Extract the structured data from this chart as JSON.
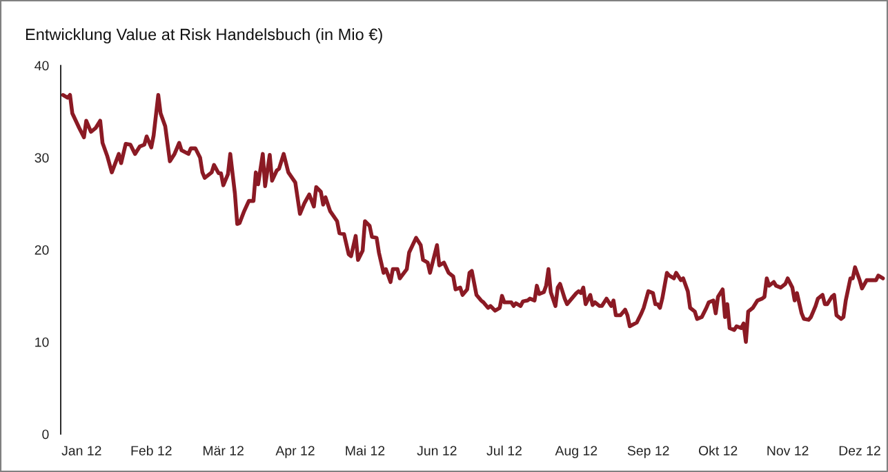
{
  "chart_data": {
    "type": "line",
    "title": "Entwicklung Value at Risk Handelsbuch (in Mio €)",
    "x": [
      "2012-01-02",
      "2012-01-04",
      "2012-01-05",
      "2012-01-06",
      "2012-01-09",
      "2012-01-11",
      "2012-01-12",
      "2012-01-14",
      "2012-01-16",
      "2012-01-18",
      "2012-01-19",
      "2012-01-21",
      "2012-01-23",
      "2012-01-26",
      "2012-01-27",
      "2012-01-29",
      "2012-01-31",
      "2012-02-02",
      "2012-02-04",
      "2012-02-06",
      "2012-02-07",
      "2012-02-09",
      "2012-02-10",
      "2012-02-12",
      "2012-02-13",
      "2012-02-15",
      "2012-02-17",
      "2012-02-19",
      "2012-02-21",
      "2012-02-22",
      "2012-02-25",
      "2012-02-26",
      "2012-02-28",
      "2012-03-01",
      "2012-03-02",
      "2012-03-03",
      "2012-03-06",
      "2012-03-07",
      "2012-03-09",
      "2012-03-10",
      "2012-03-11",
      "2012-03-13",
      "2012-03-14",
      "2012-03-16",
      "2012-03-17",
      "2012-03-18",
      "2012-03-20",
      "2012-03-22",
      "2012-03-24",
      "2012-03-25",
      "2012-03-26",
      "2012-03-28",
      "2012-03-29",
      "2012-03-31",
      "2012-04-01",
      "2012-04-03",
      "2012-04-04",
      "2012-04-06",
      "2012-04-08",
      "2012-04-11",
      "2012-04-13",
      "2012-04-15",
      "2012-04-17",
      "2012-04-19",
      "2012-04-20",
      "2012-04-22",
      "2012-04-23",
      "2012-04-24",
      "2012-04-26",
      "2012-04-29",
      "2012-04-30",
      "2012-05-02",
      "2012-05-04",
      "2012-05-05",
      "2012-05-07",
      "2012-05-08",
      "2012-05-10",
      "2012-05-11",
      "2012-05-13",
      "2012-05-14",
      "2012-05-16",
      "2012-05-17",
      "2012-05-19",
      "2012-05-20",
      "2012-05-22",
      "2012-05-23",
      "2012-05-25",
      "2012-05-26",
      "2012-05-29",
      "2012-05-30",
      "2012-06-02",
      "2012-06-04",
      "2012-06-05",
      "2012-06-07",
      "2012-06-08",
      "2012-06-11",
      "2012-06-12",
      "2012-06-14",
      "2012-06-16",
      "2012-06-18",
      "2012-06-19",
      "2012-06-21",
      "2012-06-22",
      "2012-06-24",
      "2012-06-25",
      "2012-06-26",
      "2012-06-28",
      "2012-06-30",
      "2012-07-01",
      "2012-07-03",
      "2012-07-04",
      "2012-07-06",
      "2012-07-08",
      "2012-07-09",
      "2012-07-10",
      "2012-07-12",
      "2012-07-13",
      "2012-07-14",
      "2012-07-15",
      "2012-07-17",
      "2012-07-18",
      "2012-07-20",
      "2012-07-21",
      "2012-07-23",
      "2012-07-24",
      "2012-07-25",
      "2012-07-27",
      "2012-07-28",
      "2012-07-29",
      "2012-07-30",
      "2012-08-01",
      "2012-08-02",
      "2012-08-03",
      "2012-08-05",
      "2012-08-06",
      "2012-08-08",
      "2012-08-10",
      "2012-08-11",
      "2012-08-12",
      "2012-08-13",
      "2012-08-14",
      "2012-08-16",
      "2012-08-17",
      "2012-08-18",
      "2012-08-20",
      "2012-08-21",
      "2012-08-23",
      "2012-08-24",
      "2012-08-25",
      "2012-08-26",
      "2012-08-27",
      "2012-08-29",
      "2012-08-31",
      "2012-09-01",
      "2012-09-02",
      "2012-09-05",
      "2012-09-07",
      "2012-09-08",
      "2012-09-10",
      "2012-09-12",
      "2012-09-13",
      "2012-09-14",
      "2012-09-15",
      "2012-09-16",
      "2012-09-18",
      "2012-09-19",
      "2012-09-21",
      "2012-09-22",
      "2012-09-24",
      "2012-09-25",
      "2012-09-27",
      "2012-09-28",
      "2012-09-30",
      "2012-10-01",
      "2012-10-03",
      "2012-10-05",
      "2012-10-06",
      "2012-10-08",
      "2012-10-09",
      "2012-10-10",
      "2012-10-12",
      "2012-10-13",
      "2012-10-14",
      "2012-10-15",
      "2012-10-17",
      "2012-10-18",
      "2012-10-20",
      "2012-10-21",
      "2012-10-22",
      "2012-10-23",
      "2012-10-25",
      "2012-10-27",
      "2012-10-29",
      "2012-10-30",
      "2012-10-31",
      "2012-11-01",
      "2012-11-03",
      "2012-11-04",
      "2012-11-06",
      "2012-11-08",
      "2012-11-09",
      "2012-11-11",
      "2012-11-12",
      "2012-11-13",
      "2012-11-15",
      "2012-11-16",
      "2012-11-18",
      "2012-11-19",
      "2012-11-21",
      "2012-11-22",
      "2012-11-24",
      "2012-11-25",
      "2012-11-26",
      "2012-11-28",
      "2012-11-29",
      "2012-11-30",
      "2012-12-02",
      "2012-12-03",
      "2012-12-04",
      "2012-12-06",
      "2012-12-07",
      "2012-12-08",
      "2012-12-10",
      "2012-12-11",
      "2012-12-13",
      "2012-12-14",
      "2012-12-15",
      "2012-12-17",
      "2012-12-18",
      "2012-12-20"
    ],
    "series": [
      {
        "color": "#8b1a24",
        "values": [
          36.8,
          36.5,
          36.8,
          34.8,
          33.2,
          32.2,
          34.0,
          32.8,
          33.2,
          34.0,
          31.6,
          30.2,
          28.4,
          30.4,
          29.4,
          31.5,
          31.4,
          30.4,
          31.2,
          31.4,
          32.3,
          31.1,
          32.4,
          36.8,
          34.8,
          33.4,
          29.6,
          30.4,
          31.6,
          30.8,
          30.4,
          31.0,
          31.0,
          30.0,
          28.4,
          27.8,
          28.4,
          29.2,
          28.3,
          28.3,
          27.0,
          28.2,
          30.4,
          26.1,
          22.8,
          22.9,
          24.2,
          25.3,
          25.3,
          28.4,
          27.1,
          30.4,
          26.9,
          30.3,
          27.5,
          28.6,
          28.8,
          30.4,
          28.4,
          27.3,
          23.9,
          25.1,
          26.0,
          24.7,
          26.8,
          26.3,
          24.9,
          25.7,
          24.2,
          23.1,
          21.8,
          21.7,
          19.5,
          19.3,
          21.5,
          18.9,
          19.9,
          23.1,
          22.6,
          21.4,
          21.3,
          19.7,
          17.5,
          17.9,
          16.5,
          17.9,
          17.9,
          16.9,
          17.9,
          19.7,
          21.3,
          20.5,
          18.9,
          18.6,
          17.5,
          20.5,
          18.3,
          18.6,
          17.5,
          17.1,
          15.7,
          15.9,
          15.1,
          15.7,
          17.5,
          17.7,
          15.1,
          14.5,
          14.3,
          13.7,
          13.9,
          13.4,
          13.7,
          15.0,
          14.3,
          14.3,
          14.3,
          13.9,
          14.2,
          13.9,
          14.4,
          14.5,
          14.7,
          14.5,
          16.1,
          15.2,
          15.4,
          16.1,
          17.9,
          15.4,
          13.9,
          15.9,
          16.3,
          14.7,
          14.1,
          14.7,
          15.3,
          15.5,
          15.3,
          15.9,
          14.1,
          15.1,
          14.0,
          14.3,
          13.9,
          13.9,
          14.7,
          14.3,
          13.9,
          14.5,
          12.9,
          12.9,
          13.5,
          12.9,
          11.7,
          12.1,
          13.1,
          13.7,
          15.5,
          15.3,
          14.1,
          14.1,
          13.7,
          14.7,
          17.5,
          17.2,
          16.9,
          17.5,
          16.7,
          16.9,
          15.5,
          13.7,
          13.3,
          12.5,
          12.7,
          13.7,
          14.3,
          14.5,
          13.1,
          14.9,
          15.7,
          12.7,
          14.1,
          11.5,
          11.3,
          11.7,
          11.5,
          12.0,
          10.0,
          13.3,
          13.7,
          14.5,
          14.7,
          14.9,
          16.9,
          16.1,
          16.5,
          16.1,
          15.9,
          16.3,
          16.9,
          15.9,
          14.5,
          15.3,
          13.1,
          12.5,
          12.4,
          12.7,
          13.9,
          14.7,
          15.1,
          14.1,
          14.1,
          14.9,
          15.1,
          12.9,
          12.5,
          12.7,
          14.5,
          16.9,
          16.9,
          18.1,
          16.7,
          15.8,
          16.7,
          16.7,
          16.7,
          16.7,
          17.2,
          16.9
        ]
      }
    ],
    "xlim": [
      "2012-01-01",
      "2012-12-21"
    ],
    "xticks": [
      {
        "value": "2012-01-10",
        "label": "Jan 12"
      },
      {
        "value": "2012-02-09",
        "label": "Feb 12"
      },
      {
        "value": "2012-03-11",
        "label": "Mär 12"
      },
      {
        "value": "2012-04-11",
        "label": "Apr 12"
      },
      {
        "value": "2012-05-11",
        "label": "Mai 12"
      },
      {
        "value": "2012-06-11",
        "label": "Jun 12"
      },
      {
        "value": "2012-07-10",
        "label": "Jul 12"
      },
      {
        "value": "2012-08-10",
        "label": "Aug 12"
      },
      {
        "value": "2012-09-10",
        "label": "Sep 12"
      },
      {
        "value": "2012-10-10",
        "label": "Okt 12"
      },
      {
        "value": "2012-11-09",
        "label": "Nov 12"
      },
      {
        "value": "2012-12-10",
        "label": "Dez 12"
      }
    ],
    "ylim": [
      0,
      40
    ],
    "yticks": [
      0,
      10,
      20,
      30,
      40
    ],
    "grid": false,
    "legend": false,
    "marker": "none",
    "line_style": "solid"
  }
}
